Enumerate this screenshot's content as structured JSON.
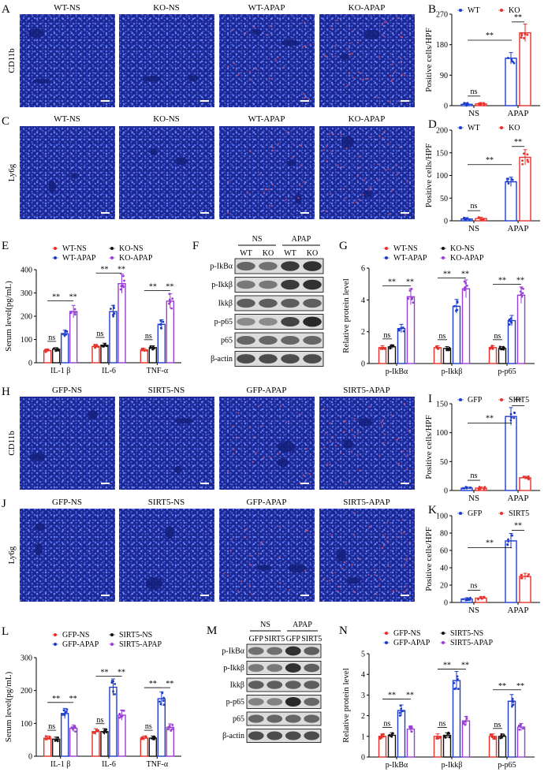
{
  "panel_letters": [
    "A",
    "B",
    "C",
    "D",
    "E",
    "F",
    "G",
    "H",
    "I",
    "J",
    "K",
    "L",
    "M",
    "N"
  ],
  "colors": {
    "micro_bg": "#1d2a96",
    "nuclei": "#4a62e6",
    "stain": "#e0506a",
    "wt_blue": "#1f3dcc",
    "ko_red": "#e8312a",
    "black": "#111111",
    "purple": "#9a3fd6"
  },
  "row_A": {
    "row_label": "CD11b",
    "titles": [
      "WT-NS",
      "KO-NS",
      "WT-APAP",
      "KO-APAP"
    ]
  },
  "row_C": {
    "row_label": "Ly6g",
    "titles": [
      "WT-NS",
      "KO-NS",
      "WT-APAP",
      "KO-APAP"
    ]
  },
  "row_H": {
    "row_label": "CD11b",
    "titles": [
      "GFP-NS",
      "SIRT5-NS",
      "GFP-APAP",
      "SIRT5-APAP"
    ]
  },
  "row_J": {
    "row_label": "Ly6g",
    "titles": [
      "GFP-NS",
      "SIRT5-NS",
      "GFP-APAP",
      "SIRT5-APAP"
    ]
  },
  "blot_F": {
    "group_labels": [
      "NS",
      "APAP"
    ],
    "lane_labels": [
      "WT",
      "KO",
      "WT",
      "KO"
    ],
    "proteins": [
      "p-IkBα",
      "p-Ikkβ",
      "Ikkβ",
      "p-p65",
      "p65",
      "β-actin"
    ],
    "intensity": [
      [
        0.55,
        0.5,
        0.8,
        0.85
      ],
      [
        0.45,
        0.45,
        0.8,
        0.85
      ],
      [
        0.6,
        0.6,
        0.6,
        0.6
      ],
      [
        0.35,
        0.35,
        0.75,
        0.9
      ],
      [
        0.55,
        0.55,
        0.55,
        0.55
      ],
      [
        0.7,
        0.7,
        0.7,
        0.7
      ]
    ]
  },
  "blot_M": {
    "group_labels": [
      "NS",
      "APAP"
    ],
    "lane_labels": [
      "GFP",
      "SIRT5",
      "GFP",
      "SIRT5"
    ],
    "proteins": [
      "p-IkBα",
      "p-Ikkβ",
      "Ikkβ",
      "p-p65",
      "p65",
      "β-actin"
    ],
    "intensity": [
      [
        0.5,
        0.5,
        0.85,
        0.6
      ],
      [
        0.45,
        0.45,
        0.85,
        0.6
      ],
      [
        0.6,
        0.6,
        0.6,
        0.6
      ],
      [
        0.4,
        0.4,
        0.9,
        0.55
      ],
      [
        0.55,
        0.55,
        0.55,
        0.55
      ],
      [
        0.7,
        0.7,
        0.7,
        0.7
      ]
    ]
  },
  "chart_data": [
    {
      "id": "B",
      "type": "bar",
      "categories": [
        "NS",
        "APAP"
      ],
      "series": [
        {
          "name": "WT",
          "values": [
            4,
            140
          ]
        },
        {
          "name": "KO",
          "values": [
            5,
            215
          ]
        }
      ],
      "ylabel": "Positive cells/HPF",
      "ylim": [
        0,
        270
      ],
      "yticks": [
        0,
        90,
        180,
        270
      ],
      "significance": [
        "ns",
        "**",
        "**"
      ]
    },
    {
      "id": "D",
      "type": "bar",
      "categories": [
        "NS",
        "APAP"
      ],
      "series": [
        {
          "name": "WT",
          "values": [
            4,
            86
          ]
        },
        {
          "name": "KO",
          "values": [
            5,
            140
          ]
        }
      ],
      "ylabel": "Positive cells/HPF",
      "ylim": [
        0,
        200
      ],
      "yticks": [
        0,
        50,
        100,
        150,
        200
      ],
      "significance": [
        "ns",
        "**",
        "**"
      ]
    },
    {
      "id": "E",
      "type": "bar",
      "categories": [
        "IL-1 β",
        "IL-6",
        "TNF-α"
      ],
      "series": [
        {
          "name": "WT-NS",
          "values": [
            52,
            70,
            55
          ]
        },
        {
          "name": "KO-NS",
          "values": [
            58,
            75,
            65
          ]
        },
        {
          "name": "WT-APAP",
          "values": [
            125,
            220,
            165
          ]
        },
        {
          "name": "KO-APAP",
          "values": [
            220,
            340,
            265
          ]
        }
      ],
      "ylabel": "Serum level(pg/mL)",
      "ylim": [
        0,
        400
      ],
      "yticks": [
        0,
        100,
        200,
        300,
        400
      ],
      "significance": [
        "ns",
        "**",
        "**",
        "ns",
        "**",
        "**",
        "ns",
        "**",
        "**"
      ]
    },
    {
      "id": "G",
      "type": "bar",
      "categories": [
        "p-IkBα",
        "p-Ikkβ",
        "p-p65"
      ],
      "series": [
        {
          "name": "WT-NS",
          "values": [
            1.0,
            1.0,
            1.0
          ]
        },
        {
          "name": "KO-NS",
          "values": [
            1.05,
            0.95,
            0.95
          ]
        },
        {
          "name": "WT-APAP",
          "values": [
            2.2,
            3.6,
            2.7
          ]
        },
        {
          "name": "KO-APAP",
          "values": [
            4.2,
            4.7,
            4.3
          ]
        }
      ],
      "ylabel": "Relative protein level",
      "ylim": [
        0,
        6
      ],
      "yticks": [
        0,
        2,
        4,
        6
      ],
      "significance": [
        "ns",
        "**",
        "**",
        "ns",
        "**",
        "**",
        "ns",
        "**",
        "**"
      ]
    },
    {
      "id": "I",
      "type": "bar",
      "categories": [
        "NS",
        "APAP"
      ],
      "series": [
        {
          "name": "GFP",
          "values": [
            4,
            128
          ]
        },
        {
          "name": "SIRT5",
          "values": [
            4,
            22
          ]
        }
      ],
      "ylabel": "Positive cells/HPF",
      "ylim": [
        0,
        150
      ],
      "yticks": [
        0,
        50,
        100,
        150
      ],
      "significance": [
        "ns",
        "**",
        "**"
      ]
    },
    {
      "id": "K",
      "type": "bar",
      "categories": [
        "NS",
        "APAP"
      ],
      "series": [
        {
          "name": "GFP",
          "values": [
            4,
            71
          ]
        },
        {
          "name": "SIRT5",
          "values": [
            5,
            30
          ]
        }
      ],
      "ylabel": "Positive cells/HPF",
      "ylim": [
        0,
        100
      ],
      "yticks": [
        0,
        20,
        40,
        60,
        80,
        100
      ],
      "significance": [
        "ns",
        "**",
        "**"
      ]
    },
    {
      "id": "L",
      "type": "bar",
      "categories": [
        "IL-1 β",
        "IL-6",
        "TNF-α"
      ],
      "series": [
        {
          "name": "GFP-NS",
          "values": [
            55,
            75,
            55
          ]
        },
        {
          "name": "SIRT5-NS",
          "values": [
            52,
            75,
            55
          ]
        },
        {
          "name": "GFP-APAP",
          "values": [
            130,
            210,
            175
          ]
        },
        {
          "name": "SIRT5-APAP",
          "values": [
            85,
            125,
            88
          ]
        }
      ],
      "ylabel": "Serum level(pg/mL)",
      "ylim": [
        0,
        300
      ],
      "yticks": [
        0,
        100,
        200,
        300
      ],
      "significance": [
        "ns",
        "**",
        "**",
        "ns",
        "**",
        "**",
        "ns",
        "**",
        "**"
      ]
    },
    {
      "id": "N",
      "type": "bar",
      "categories": [
        "p-IkBα",
        "p-Ikkβ",
        "p-p65"
      ],
      "series": [
        {
          "name": "GFP-NS",
          "values": [
            1.0,
            1.0,
            1.0
          ]
        },
        {
          "name": "SIRT5-NS",
          "values": [
            1.05,
            1.05,
            1.0
          ]
        },
        {
          "name": "GFP-APAP",
          "values": [
            2.25,
            3.7,
            2.7
          ]
        },
        {
          "name": "SIRT5-APAP",
          "values": [
            1.35,
            1.75,
            1.45
          ]
        }
      ],
      "ylabel": "Relative protein level",
      "ylim": [
        0,
        5
      ],
      "yticks": [
        0,
        1,
        2,
        3,
        4,
        5
      ],
      "significance": [
        "ns",
        "**",
        "**",
        "ns",
        "**",
        "**",
        "ns",
        "**",
        "**"
      ]
    }
  ]
}
